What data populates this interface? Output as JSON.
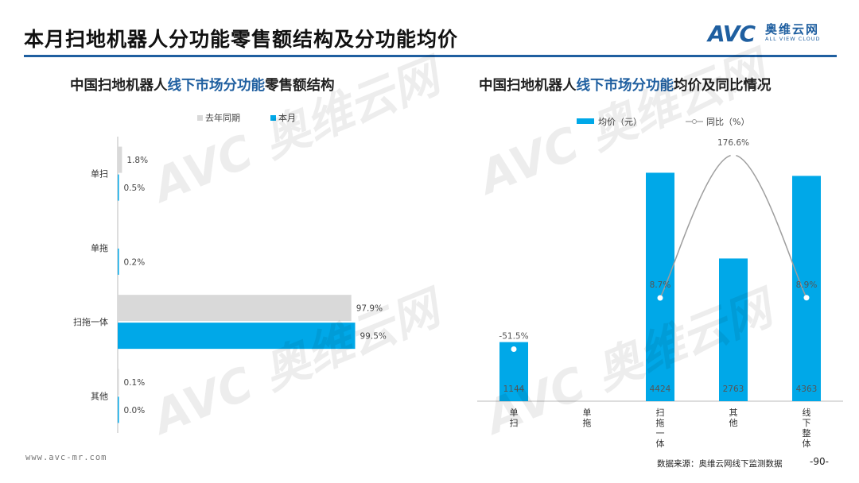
{
  "page": {
    "title": "本月扫地机器人分功能零售额结构及分功能均价",
    "logo_avc": "AVC",
    "logo_cn": "奥维云网",
    "logo_en": "ALL VIEW CLOUD",
    "watermark_text": "AVC 奥维云网",
    "watermark_sub": "ALL VIEW CLOUD",
    "footer_url": "www.avc-mr.com",
    "footer_source": "数据来源：奥维云网线下监测数据",
    "page_number": "-90-"
  },
  "left_title": {
    "pre": "中国扫地机器人",
    "highlight": "线下市场分功能",
    "post": "零售额结构"
  },
  "right_title": {
    "pre": "中国扫地机器人",
    "highlight": "线下市场分功能",
    "post": "均价及同比情况"
  },
  "colors": {
    "accent": "#1f5fa0",
    "current": "#00a8e8",
    "last_year": "#d9d9d9",
    "yoy_line": "#9e9e9e"
  },
  "chart_data": [
    {
      "type": "bar",
      "orientation": "horizontal",
      "categories": [
        "单扫",
        "单拖",
        "扫拖一体",
        "其他"
      ],
      "series": [
        {
          "name": "去年同期",
          "values": [
            1.8,
            null,
            97.9,
            0.1
          ],
          "labels": [
            "1.8%",
            "",
            "97.9%",
            "0.1%"
          ]
        },
        {
          "name": "本月",
          "values": [
            0.5,
            0.2,
            99.5,
            0.0
          ],
          "labels": [
            "0.5%",
            "0.2%",
            "99.5%",
            "0.0%"
          ]
        }
      ],
      "legend": "top",
      "xlim": [
        0,
        100
      ]
    },
    {
      "type": "bar+line",
      "categories": [
        "单扫",
        "单拖",
        "扫拖一体",
        "其他",
        "线下整体"
      ],
      "series": [
        {
          "name": "均价（元）",
          "type": "bar",
          "values": [
            1144,
            null,
            4424,
            2763,
            4363
          ],
          "labels": [
            "1144",
            "",
            "4424",
            "2763",
            "4363"
          ]
        },
        {
          "name": "同比（%）",
          "type": "line",
          "values": [
            -51.5,
            null,
            8.7,
            176.6,
            8.9
          ],
          "labels": [
            "-51.5%",
            "",
            "8.7%",
            "176.6%",
            "8.9%"
          ]
        }
      ],
      "legend": "top",
      "ylim_bar": [
        0,
        5000
      ],
      "ylim_line": [
        -80,
        200
      ]
    }
  ]
}
